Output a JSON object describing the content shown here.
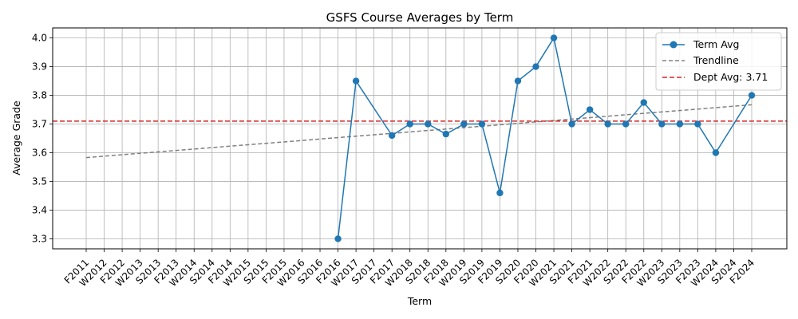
{
  "chart_data": {
    "type": "line",
    "title": "GSFS Course Averages by Term",
    "xlabel": "Term",
    "ylabel": "Average Grade",
    "ylim": [
      3.265,
      4.035
    ],
    "yticks": [
      "3.3",
      "3.4",
      "3.5",
      "3.6",
      "3.7",
      "3.8",
      "3.9",
      "4.0"
    ],
    "grid": true,
    "legend_position": "top-right",
    "categories": [
      "F2011",
      "W2012",
      "F2012",
      "W2013",
      "S2013",
      "F2013",
      "W2014",
      "S2014",
      "F2014",
      "W2015",
      "S2015",
      "F2015",
      "W2016",
      "S2016",
      "F2016",
      "W2017",
      "S2017",
      "F2017",
      "W2018",
      "S2018",
      "F2018",
      "W2019",
      "S2019",
      "F2019",
      "S2020",
      "F2020",
      "W2021",
      "S2021",
      "F2021",
      "W2022",
      "S2022",
      "F2022",
      "W2023",
      "S2023",
      "F2023",
      "W2024",
      "S2024",
      "F2024"
    ],
    "series": [
      {
        "name": "Term Avg",
        "color": "#1f77b4",
        "style": "solid-with-markers",
        "values": [
          null,
          null,
          null,
          null,
          null,
          null,
          null,
          null,
          null,
          null,
          null,
          null,
          null,
          null,
          3.3,
          3.85,
          null,
          3.66,
          3.7,
          3.7,
          3.665,
          3.7,
          3.7,
          3.46,
          3.85,
          3.9,
          4.0,
          3.7,
          3.75,
          3.7,
          3.7,
          3.775,
          3.7,
          3.7,
          3.7,
          3.6,
          null,
          3.8
        ]
      },
      {
        "name": "Trendline",
        "color": "#808080",
        "style": "dashed",
        "start": 3.583,
        "end": 3.767
      },
      {
        "name": "Dept Avg: 3.71",
        "color": "#d62728",
        "style": "dashed",
        "value": 3.71
      }
    ]
  }
}
